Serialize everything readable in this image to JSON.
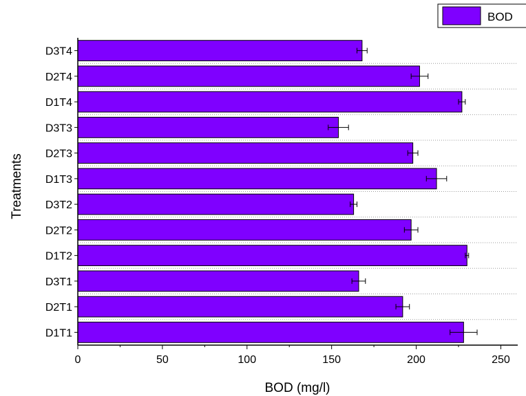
{
  "chart_data": {
    "type": "bar",
    "orientation": "horizontal",
    "categories": [
      "D3T4",
      "D2T4",
      "D1T4",
      "D3T3",
      "D2T3",
      "D1T3",
      "D3T2",
      "D2T2",
      "D1T2",
      "D3T1",
      "D2T1",
      "D1T1"
    ],
    "series": [
      {
        "name": "BOD",
        "values": [
          168,
          202,
          227,
          154,
          198,
          212,
          163,
          197,
          230,
          166,
          192,
          228
        ],
        "errors": [
          3,
          5,
          2,
          6,
          3,
          6,
          2,
          4,
          1,
          4,
          4,
          8
        ],
        "color": "#7f00ff"
      }
    ],
    "xlabel": "BOD (mg/l)",
    "ylabel": "Treatments",
    "xlim": [
      0,
      260
    ],
    "xticks": [
      0,
      50,
      100,
      150,
      200,
      250
    ],
    "grid": "horizontal dotted",
    "legend": "top-right"
  }
}
